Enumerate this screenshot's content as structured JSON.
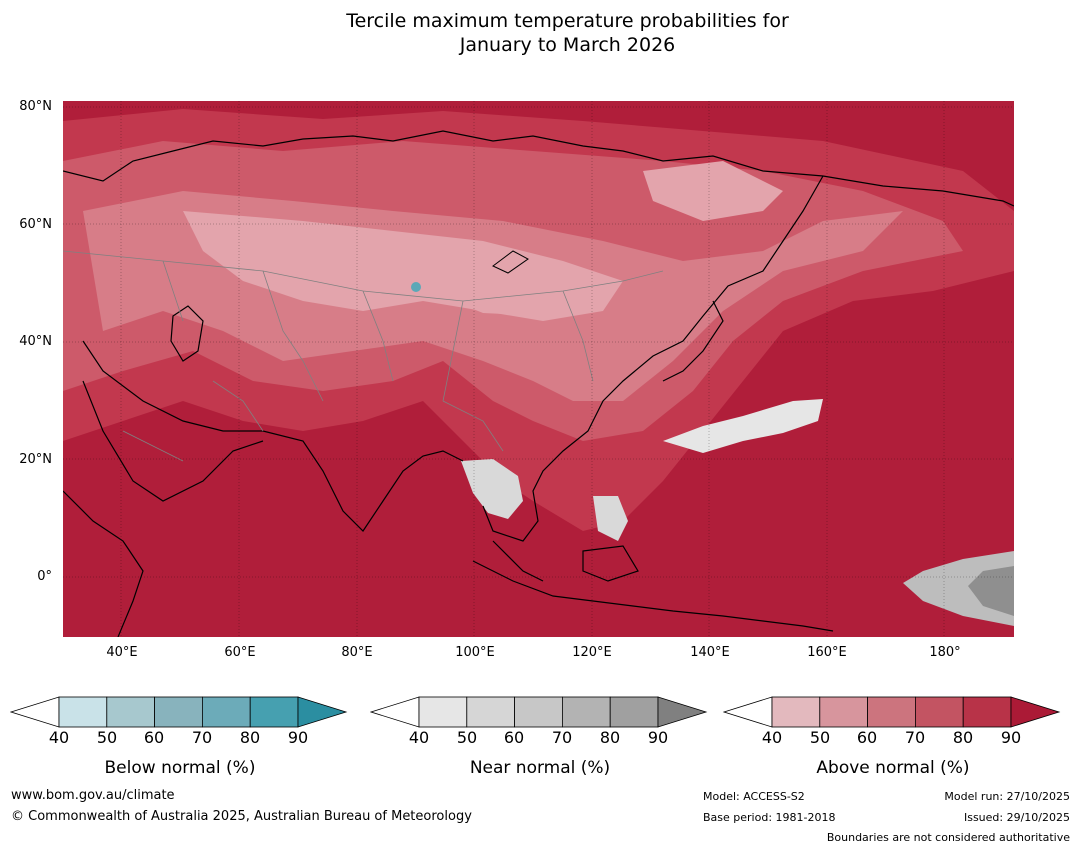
{
  "title": {
    "line1": "Tercile maximum temperature probabilities for",
    "line2": "January to March 2026"
  },
  "map": {
    "lat_labels": [
      "80°N",
      "60°N",
      "40°N",
      "20°N",
      "0°"
    ],
    "lon_labels": [
      "40°E",
      "60°E",
      "80°E",
      "100°E",
      "120°E",
      "140°E",
      "160°E",
      "180°"
    ],
    "dominant_category": "Above normal",
    "colors": {
      "above_90": "#b01e3a",
      "above_80": "#c2384e",
      "above_70": "#cd5a6a",
      "above_60": "#d77d88",
      "above_50": "#e3a4ac",
      "near_50": "#d9d9d9",
      "near_60": "#bdbdbd",
      "near_80": "#8f8f8f",
      "below_60": "#5ba8b7",
      "coast": "#000000",
      "border": "#808080"
    }
  },
  "colorbars": [
    {
      "name": "below-normal",
      "label": "Below normal (%)",
      "ticks": [
        "40",
        "50",
        "60",
        "70",
        "80",
        "90"
      ],
      "colors": [
        "#ffffff",
        "#c9e2e8",
        "#a7c8ce",
        "#88b3bd",
        "#6cabb9",
        "#46a0b0",
        "#2b8ea1"
      ]
    },
    {
      "name": "near-normal",
      "label": "Near normal (%)",
      "ticks": [
        "40",
        "50",
        "60",
        "70",
        "80",
        "90"
      ],
      "colors": [
        "#ffffff",
        "#e6e6e6",
        "#d6d6d6",
        "#c7c7c7",
        "#b3b3b3",
        "#a0a0a0",
        "#808080"
      ]
    },
    {
      "name": "above-normal",
      "label": "Above normal (%)",
      "ticks": [
        "40",
        "50",
        "60",
        "70",
        "80",
        "90"
      ],
      "colors": [
        "#ffffff",
        "#e3b9be",
        "#d7959d",
        "#cc747e",
        "#c35462",
        "#b83348",
        "#ab1a36"
      ]
    }
  ],
  "footer": {
    "website": "www.bom.gov.au/climate",
    "copyright": "© Commonwealth of Australia 2025, Australian Bureau of Meteorology",
    "model": "Model: ACCESS-S2",
    "base_period": "Base period: 1981-2018",
    "model_run": "Model run: 27/10/2025",
    "issued": "Issued: 29/10/2025",
    "disclaimer": "Boundaries are not considered authoritative"
  }
}
